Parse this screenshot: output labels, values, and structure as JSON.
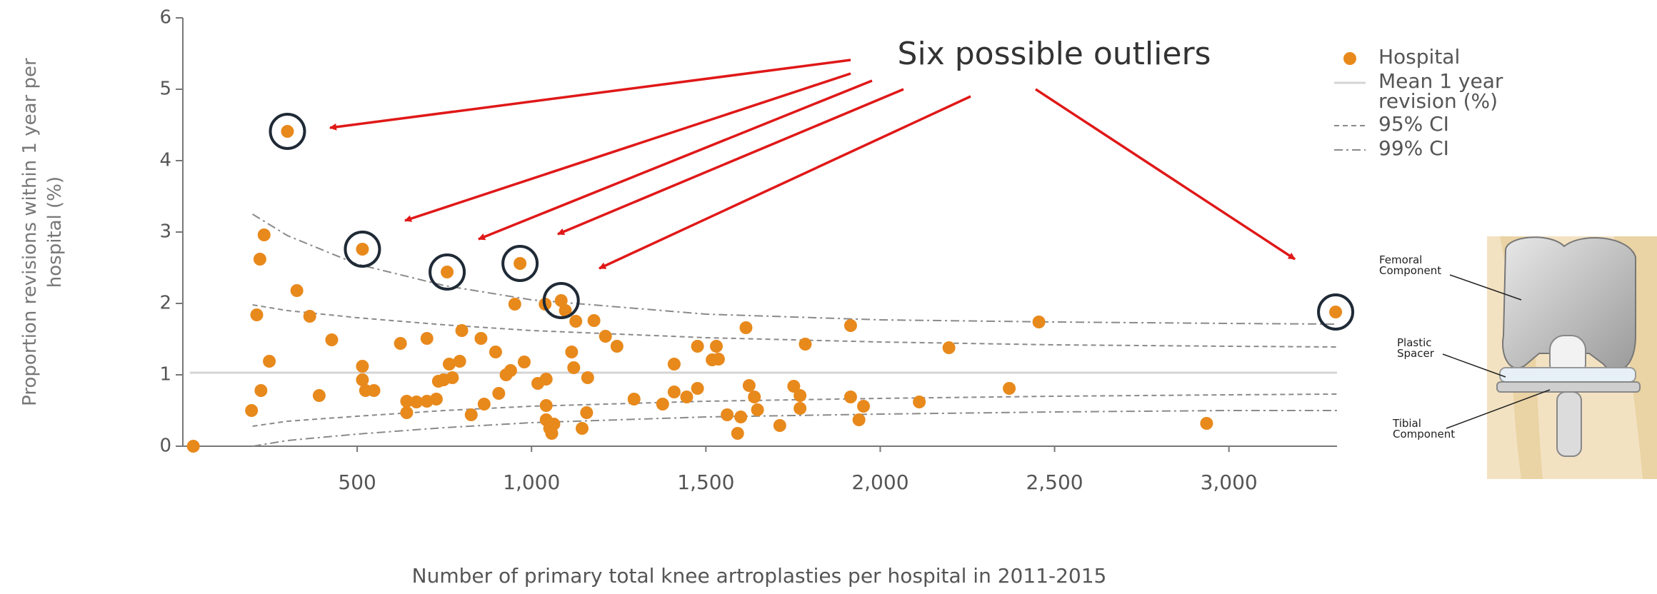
{
  "chart_data": {
    "type": "scatter",
    "annotation": "Six possible outliers",
    "x_label": "Number of primary total knee artroplasties per hospital in 2011-2015",
    "y_label": "Proportion revisions within 1 year per hospital (%)",
    "xlim": [
      0,
      3310
    ],
    "ylim": [
      0,
      6
    ],
    "xticks": [
      500,
      {
        "value": 1000,
        "label": "1,000"
      },
      {
        "value": 1500,
        "label": "1,500"
      },
      {
        "value": 2000,
        "label": "2,000"
      },
      {
        "value": 2500,
        "label": "2,500"
      },
      {
        "value": 3000,
        "label": "3,000"
      }
    ],
    "yticks": [
      0,
      1,
      2,
      3,
      4,
      5,
      6
    ],
    "legend": "upper right",
    "image_labels": [
      "Femoral Component",
      "Plastic Spacer",
      "Tibial Component"
    ],
    "series": [
      {
        "name": "Hospital",
        "type": "scatter",
        "color": "#e8891c",
        "x": [
          300,
          515,
          758,
          967,
          1085,
          3306,
          30,
          197,
          212,
          221,
          233,
          224,
          248,
          327,
          364,
          391,
          427,
          515,
          515,
          524,
          548,
          624,
          642,
          642,
          670,
          700,
          700,
          727,
          733,
          748,
          764,
          773,
          794,
          800,
          827,
          855,
          864,
          897,
          906,
          927,
          940,
          952,
          979,
          1018,
          1042,
          1039,
          1042,
          1042,
          1052,
          1058,
          1064,
          1097,
          1115,
          1121,
          1127,
          1145,
          1158,
          1161,
          1179,
          1212,
          1245,
          1294,
          1376,
          1409,
          1409,
          1445,
          1476,
          1476,
          1518,
          1530,
          1536,
          1561,
          1591,
          1600,
          1624,
          1639,
          1648,
          1615,
          1712,
          1752,
          1770,
          1770,
          1785,
          1915,
          1915,
          1939,
          1952,
          2112,
          2197,
          2370,
          2455,
          2936
        ],
        "values": [
          4.41,
          2.76,
          2.44,
          2.56,
          2.04,
          1.88,
          0,
          0.5,
          1.84,
          2.62,
          2.96,
          0.78,
          1.19,
          2.18,
          1.82,
          0.71,
          1.49,
          1.12,
          0.93,
          0.78,
          0.78,
          1.44,
          0.47,
          0.63,
          0.62,
          1.51,
          0.63,
          0.66,
          0.91,
          0.93,
          1.15,
          0.96,
          1.19,
          1.62,
          0.44,
          1.51,
          0.59,
          1.32,
          0.74,
          1.0,
          1.06,
          1.99,
          1.18,
          0.88,
          0.94,
          1.99,
          0.57,
          0.37,
          0.25,
          0.18,
          0.31,
          1.9,
          1.32,
          1.1,
          1.75,
          0.25,
          0.47,
          0.96,
          1.76,
          1.54,
          1.4,
          0.66,
          0.59,
          1.15,
          0.76,
          0.69,
          0.81,
          1.4,
          1.21,
          1.4,
          1.22,
          0.44,
          0.18,
          0.41,
          0.85,
          0.69,
          0.51,
          1.66,
          0.29,
          0.84,
          0.71,
          0.53,
          1.43,
          1.69,
          0.69,
          0.37,
          0.56,
          0.62,
          1.38,
          0.81,
          1.74,
          0.32
        ]
      },
      {
        "name": "Mean 1 year revision (%)",
        "type": "line",
        "style": "solid",
        "color": "#d4d4d4",
        "x": [
          20,
          3310
        ],
        "values": [
          1.03,
          1.03
        ]
      },
      {
        "name": "95% CI",
        "type": "band",
        "style": "dashed",
        "color": "#8a8a8a",
        "x": [
          200,
          300,
          500,
          750,
          1000,
          1500,
          2000,
          2500,
          3000,
          3310
        ],
        "upper": [
          1.98,
          1.9,
          1.8,
          1.7,
          1.62,
          1.52,
          1.46,
          1.42,
          1.4,
          1.39
        ],
        "lower": [
          0.28,
          0.35,
          0.42,
          0.5,
          0.56,
          0.63,
          0.67,
          0.7,
          0.72,
          0.73
        ]
      },
      {
        "name": "99% CI",
        "type": "band",
        "style": "dashdot",
        "color": "#8a8a8a",
        "x": [
          200,
          300,
          500,
          750,
          1000,
          1500,
          2000,
          2500,
          3000,
          3310
        ],
        "upper": [
          3.25,
          2.95,
          2.55,
          2.25,
          2.05,
          1.85,
          1.77,
          1.74,
          1.72,
          1.71
        ],
        "lower": [
          0.0,
          0.08,
          0.17,
          0.26,
          0.33,
          0.41,
          0.45,
          0.48,
          0.5,
          0.5
        ]
      }
    ]
  }
}
